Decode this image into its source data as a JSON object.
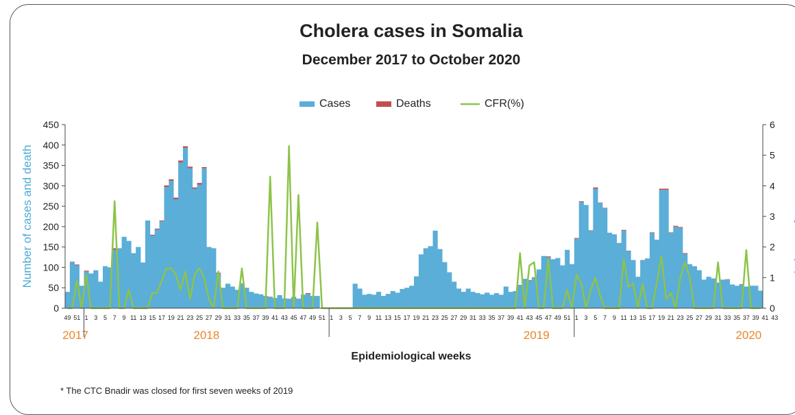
{
  "title": "Cholera cases in Somalia",
  "subtitle": "December 2017 to October 2020",
  "footnote": "* The CTC Bnadir was closed for first seven weeks of  2019",
  "colors": {
    "cases": "#5aaed8",
    "deaths": "#c0504d",
    "cfr": "#8dc34a",
    "year": "#e8872a",
    "ylabel": "#4aaad6"
  },
  "chart_data": {
    "type": "bar",
    "title": "Cholera cases in Somalia",
    "subtitle": "December 2017 to October 2020",
    "xlabel": "Epidemiological weeks",
    "ylabel": "Number of cases and death",
    "y2label": "Case Fatality Rate (%)",
    "ylim": [
      0,
      450
    ],
    "y2lim": [
      0,
      6
    ],
    "yticks": [
      0,
      50,
      100,
      150,
      200,
      250,
      300,
      350,
      400,
      450
    ],
    "y2ticks": [
      0,
      1,
      2,
      3,
      4,
      5,
      6
    ],
    "legend": [
      "Cases",
      "Deaths",
      "CFR(%)"
    ],
    "legend_position": "top-center",
    "years": [
      {
        "label": "2017",
        "weeks": [
          49,
          50,
          51,
          52
        ]
      },
      {
        "label": "2018",
        "weeks": [
          1,
          52
        ]
      },
      {
        "label": "2019",
        "weeks": [
          1,
          52
        ]
      },
      {
        "label": "2020",
        "weeks": [
          1,
          43
        ]
      }
    ],
    "tick_labels": [
      {
        "year": "2017",
        "labels": [
          "49",
          "51"
        ]
      },
      {
        "year": "2018",
        "labels": [
          "1",
          "3",
          "5",
          "7",
          "9",
          "11",
          "13",
          "15",
          "17",
          "19",
          "21",
          "23",
          "25",
          "27",
          "29",
          "31",
          "33",
          "35",
          "37",
          "39",
          "41",
          "43",
          "45",
          "47",
          "49",
          "51"
        ]
      },
      {
        "year": "2019",
        "labels": [
          "1",
          "3",
          "5",
          "7",
          "9",
          "11",
          "13",
          "15",
          "17",
          "19",
          "21",
          "23",
          "25",
          "27",
          "29",
          "31",
          "33",
          "35",
          "37",
          "39",
          "41",
          "43",
          "45",
          "47",
          "49",
          "51"
        ]
      },
      {
        "year": "2020",
        "labels": [
          "1",
          "3",
          "5",
          "7",
          "9",
          "11",
          "13",
          "15",
          "17",
          "19",
          "21",
          "23",
          "25",
          "27",
          "29",
          "31",
          "33",
          "35",
          "37",
          "39",
          "41",
          "43"
        ]
      }
    ],
    "cases": [
      40,
      113,
      105,
      55,
      90,
      85,
      93,
      65,
      103,
      100,
      143,
      147,
      175,
      165,
      135,
      150,
      112,
      215,
      178,
      193,
      213,
      297,
      312,
      267,
      357,
      393,
      343,
      293,
      303,
      343,
      150,
      147,
      85,
      50,
      60,
      53,
      45,
      60,
      50,
      40,
      36,
      34,
      30,
      27,
      25,
      32,
      24,
      22,
      28,
      22,
      33,
      35,
      30,
      30,
      0,
      0,
      0,
      0,
      0,
      0,
      0,
      60,
      48,
      33,
      35,
      33,
      40,
      30,
      35,
      42,
      38,
      47,
      50,
      55,
      78,
      132,
      147,
      152,
      190,
      145,
      113,
      88,
      65,
      48,
      40,
      48,
      40,
      37,
      34,
      38,
      33,
      37,
      33,
      53,
      40,
      42,
      56,
      72,
      68,
      75,
      95,
      128,
      125,
      120,
      123,
      105,
      143,
      108,
      170,
      260,
      253,
      190,
      293,
      258,
      245,
      185,
      181,
      160,
      190,
      140,
      118,
      77,
      117,
      122,
      185,
      168,
      290,
      290,
      185,
      200,
      197,
      133,
      108,
      103,
      93,
      70,
      77,
      73,
      63,
      70,
      70,
      58,
      55,
      58,
      53,
      55,
      55,
      43
    ],
    "deaths": [
      0,
      1,
      2,
      0,
      2,
      0,
      0,
      0,
      0,
      0,
      4,
      0,
      0,
      0,
      0,
      0,
      0,
      0,
      2,
      2,
      2,
      4,
      4,
      4,
      5,
      4,
      4,
      3,
      4,
      3,
      0,
      0,
      2,
      0,
      0,
      0,
      0,
      1,
      0,
      0,
      0,
      0,
      0,
      1,
      0,
      0,
      0,
      1,
      0,
      1,
      0,
      2,
      0,
      0,
      0,
      0,
      0,
      0,
      0,
      0,
      0,
      0,
      0,
      0,
      0,
      0,
      0,
      0,
      0,
      0,
      0,
      0,
      0,
      0,
      0,
      0,
      0,
      0,
      0,
      0,
      0,
      0,
      0,
      0,
      0,
      0,
      0,
      0,
      0,
      0,
      0,
      0,
      0,
      0,
      0,
      0,
      1,
      0,
      1,
      1,
      0,
      0,
      2,
      0,
      0,
      0,
      0,
      0,
      2,
      2,
      0,
      1,
      3,
      1,
      1,
      0,
      0,
      0,
      2,
      1,
      0,
      0,
      1,
      0,
      1,
      0,
      3,
      3,
      1,
      2,
      2,
      2,
      0,
      0,
      0,
      0,
      0,
      0,
      0,
      0,
      1,
      0,
      0,
      1,
      0,
      0,
      0,
      0
    ],
    "cfr": [
      0,
      0,
      0.9,
      0,
      1.1,
      0,
      0,
      0,
      0,
      0,
      3.5,
      0,
      0,
      0.6,
      0,
      0,
      0,
      0,
      0.5,
      0.5,
      0.9,
      1.3,
      1.3,
      1.1,
      0.6,
      1.2,
      0.3,
      1.1,
      1.3,
      1.0,
      0.3,
      0,
      1.2,
      0,
      0,
      0,
      0,
      1.3,
      0,
      0,
      0,
      0,
      0,
      4.3,
      0,
      0,
      0,
      5.3,
      0,
      3.7,
      0,
      0,
      0,
      2.8,
      0,
      0,
      0,
      0,
      0,
      0,
      0,
      0,
      0,
      0,
      0,
      0,
      0,
      0,
      0,
      0,
      0,
      0,
      0,
      0,
      0,
      0,
      0,
      0,
      0,
      0,
      0,
      0,
      0,
      0,
      0,
      0,
      0,
      0,
      0,
      0,
      0,
      0,
      0,
      0,
      0,
      0,
      1.8,
      0,
      1.4,
      1.5,
      0,
      0,
      1.6,
      0,
      0,
      0,
      0.6,
      0,
      1.1,
      0.8,
      0,
      0.6,
      1.0,
      0.4,
      0,
      0,
      0,
      0,
      1.6,
      0.7,
      0.8,
      0,
      0.8,
      0,
      0,
      0.8,
      1.7,
      0.3,
      0.5,
      0,
      1.0,
      1.5,
      1.0,
      0,
      0,
      0,
      0,
      0,
      1.5,
      0,
      0,
      0,
      0,
      0,
      1.9,
      0,
      0,
      0
    ]
  }
}
